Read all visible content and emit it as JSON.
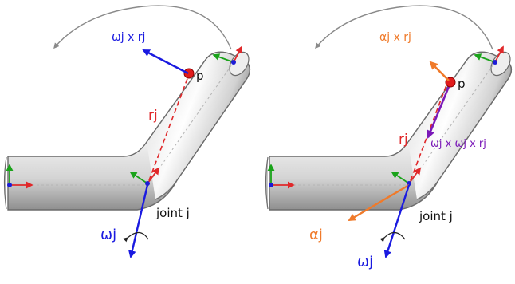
{
  "colors": {
    "background": "#ffffff",
    "tube_light": "#ffffff",
    "tube_mid": "#d6d6d6",
    "tube_dark": "#a8a8a8",
    "tube_outline": "#6b6b6b",
    "axis_x": "#e0282a",
    "axis_y": "#1aa31a",
    "axis_z": "#1c1cd6",
    "point": "#e11b1b",
    "omega": "#1a1ae0",
    "alpha": "#f07a2a",
    "centripetal": "#7a18b8",
    "radius": "#e0282a",
    "rotation_arc": "#8a8a8a",
    "text": "#111111"
  },
  "left_panel": {
    "point_label": "p",
    "radius_label": "rj",
    "joint_label": "joint j",
    "omega_label": "ωj",
    "tangential_label": "ωj x rj",
    "icons": [
      "rotation-arc-icon",
      "coordinate-frame-icon",
      "omega-spin-arc-icon"
    ]
  },
  "right_panel": {
    "point_label": "p",
    "radius_label": "rj",
    "joint_label": "joint j",
    "omega_label": "ωj",
    "alpha_label": "αj",
    "tangential_label": "αj x rj",
    "centripetal_label": "ωj x ωj x rj",
    "icons": [
      "rotation-arc-icon",
      "coordinate-frame-icon",
      "omega-spin-arc-icon"
    ]
  }
}
